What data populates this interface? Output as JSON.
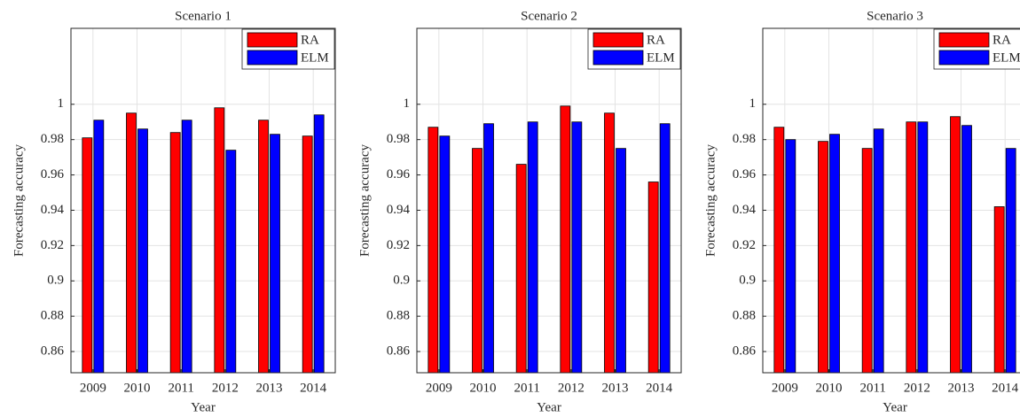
{
  "chart_data": [
    {
      "type": "bar",
      "title": "Scenario 1",
      "xlabel": "Year",
      "ylabel": "Forecasting accuracy",
      "categories": [
        "2009",
        "2010",
        "2011",
        "2012",
        "2013",
        "2014"
      ],
      "series": [
        {
          "name": "RA",
          "color": "#ff0000",
          "values": [
            0.981,
            0.995,
            0.984,
            0.998,
            0.991,
            0.982
          ]
        },
        {
          "name": "ELM",
          "color": "#0000ff",
          "values": [
            0.991,
            0.986,
            0.991,
            0.974,
            0.983,
            0.994
          ]
        }
      ],
      "ylim": [
        0.848,
        1.043
      ],
      "yticks": [
        0.86,
        0.88,
        0.9,
        0.92,
        0.94,
        0.96,
        0.98,
        1
      ],
      "grid": true,
      "legend": "upper-right"
    },
    {
      "type": "bar",
      "title": "Scenario 2",
      "xlabel": "Year",
      "ylabel": "Forecasting accuracy",
      "categories": [
        "2009",
        "2010",
        "2011",
        "2012",
        "2013",
        "2014"
      ],
      "series": [
        {
          "name": "RA",
          "color": "#ff0000",
          "values": [
            0.987,
            0.975,
            0.966,
            0.999,
            0.995,
            0.956
          ]
        },
        {
          "name": "ELM",
          "color": "#0000ff",
          "values": [
            0.982,
            0.989,
            0.99,
            0.99,
            0.975,
            0.989
          ]
        }
      ],
      "ylim": [
        0.848,
        1.043
      ],
      "yticks": [
        0.86,
        0.88,
        0.9,
        0.92,
        0.94,
        0.96,
        0.98,
        1
      ],
      "grid": true,
      "legend": "upper-right"
    },
    {
      "type": "bar",
      "title": "Scenario 3",
      "xlabel": "Year",
      "ylabel": "Forecasting accuracy",
      "categories": [
        "2009",
        "2010",
        "2011",
        "2012",
        "2013",
        "2014"
      ],
      "series": [
        {
          "name": "RA",
          "color": "#ff0000",
          "values": [
            0.987,
            0.979,
            0.975,
            0.99,
            0.993,
            0.942
          ]
        },
        {
          "name": "ELM",
          "color": "#0000ff",
          "values": [
            0.98,
            0.983,
            0.986,
            0.99,
            0.988,
            0.975
          ]
        }
      ],
      "ylim": [
        0.848,
        1.043
      ],
      "yticks": [
        0.86,
        0.88,
        0.9,
        0.92,
        0.94,
        0.96,
        0.98,
        1
      ],
      "grid": true,
      "legend": "upper-right"
    }
  ]
}
